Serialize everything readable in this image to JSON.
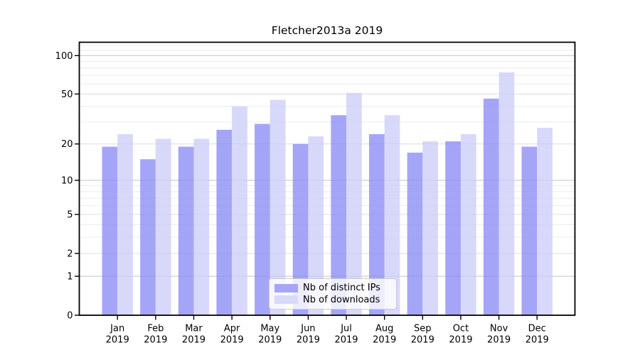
{
  "chart_data": {
    "type": "bar",
    "title": "Fletcher2013a 2019",
    "categories": [
      "Jan",
      "Feb",
      "Mar",
      "Apr",
      "May",
      "Jun",
      "Jul",
      "Aug",
      "Sep",
      "Oct",
      "Nov",
      "Dec"
    ],
    "x_year": "2019",
    "series": [
      {
        "name": "Nb of distinct IPs",
        "values": [
          19,
          15,
          19,
          26,
          29,
          20,
          34,
          24,
          17,
          21,
          46,
          19
        ],
        "fill": "rgba(140,140,246,0.78)",
        "legend_color": "#a6a6f7"
      },
      {
        "name": "Nb of downloads",
        "values": [
          24,
          22,
          22,
          40,
          45,
          23,
          51,
          34,
          21,
          24,
          74,
          27
        ],
        "fill": "rgba(205,205,248,0.78)",
        "legend_color": "#d9d9fb"
      }
    ],
    "y_axis": {
      "scale": "log1p",
      "ticks": [
        0,
        1,
        2,
        5,
        10,
        20,
        50,
        100
      ],
      "major_grid_ticks": [
        1,
        10,
        100
      ],
      "minor_ticks": [
        3,
        4,
        6,
        7,
        8,
        9,
        30,
        40,
        60,
        70,
        80,
        90,
        110,
        120
      ],
      "max": 127
    },
    "legend_position": "lower center",
    "grid": true
  },
  "colors": {
    "axis": "#000000",
    "text": "#000000",
    "grid_major": "#c2c2c2",
    "grid_mid": "#dcdcdc",
    "grid_minor": "#ececec"
  }
}
